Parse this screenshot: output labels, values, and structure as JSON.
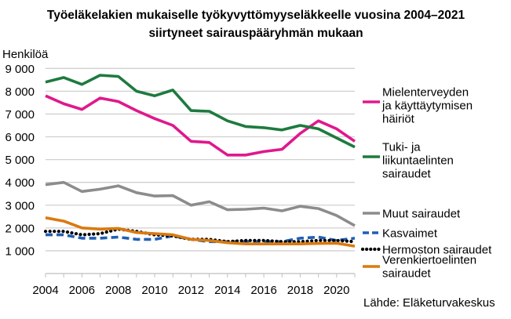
{
  "chart_data": {
    "type": "line",
    "title": [
      "Työeläkelakien mukaiselle työkyvyttömyyseläkkeelle vuosina 2004–2021",
      "siirtyneet sairauspääryhmän mukaan"
    ],
    "ylabel": "Henkilöä",
    "xlabel": "",
    "source": "Lähde: Eläketurvakeskus",
    "ylim": [
      0,
      9000
    ],
    "yticks": [
      1000,
      2000,
      3000,
      4000,
      5000,
      6000,
      7000,
      8000,
      9000
    ],
    "ytick_labels": [
      "1 000",
      "2 000",
      "3 000",
      "4 000",
      "5 000",
      "6 000",
      "7 000",
      "8 000",
      "9 000"
    ],
    "xticks": [
      "2004",
      "2006",
      "2008",
      "2010",
      "2012",
      "2014",
      "2016",
      "2018",
      "2020"
    ],
    "x": [
      2004,
      2005,
      2006,
      2007,
      2008,
      2009,
      2010,
      2011,
      2012,
      2013,
      2014,
      2015,
      2016,
      2017,
      2018,
      2019,
      2020,
      2021
    ],
    "grid": true,
    "legend_placement": "right",
    "series": [
      {
        "name": [
          "Mielenterveyden",
          "ja käyttäytymisen",
          "häiriöt"
        ],
        "color": "#e0188c",
        "style": "solid",
        "values": [
          7800,
          7450,
          7200,
          7700,
          7550,
          7150,
          6800,
          6500,
          5800,
          5750,
          5200,
          5200,
          5350,
          5450,
          6150,
          6700,
          6350,
          5800
        ]
      },
      {
        "name": [
          "Tuki- ja",
          "liikuntaelinten",
          "sairaudet"
        ],
        "color": "#1e7a3e",
        "style": "solid",
        "values": [
          8400,
          8600,
          8300,
          8700,
          8650,
          8000,
          7800,
          8050,
          7150,
          7120,
          6700,
          6450,
          6400,
          6300,
          6500,
          6350,
          5950,
          5550
        ]
      },
      {
        "name": [
          "Muut sairaudet"
        ],
        "color": "#8c8c8c",
        "style": "solid",
        "values": [
          3900,
          4000,
          3600,
          3700,
          3850,
          3550,
          3400,
          3420,
          3000,
          3150,
          2800,
          2820,
          2870,
          2750,
          2950,
          2850,
          2550,
          2100
        ]
      },
      {
        "name": [
          "Kasvaimet"
        ],
        "color": "#1f5fb4",
        "style": "dashed",
        "values": [
          1700,
          1700,
          1550,
          1550,
          1600,
          1500,
          1500,
          1650,
          1500,
          1400,
          1400,
          1400,
          1400,
          1400,
          1550,
          1600,
          1450,
          1550
        ]
      },
      {
        "name": [
          "Hermoston sairaudet"
        ],
        "color": "#000000",
        "style": "dotted",
        "values": [
          1850,
          1850,
          1700,
          1750,
          1950,
          1850,
          1700,
          1650,
          1500,
          1500,
          1400,
          1450,
          1450,
          1400,
          1400,
          1450,
          1450,
          1400
        ]
      },
      {
        "name": [
          "Verenkiertoelinten",
          "sairaudet"
        ],
        "color": "#d97a10",
        "style": "solid",
        "values": [
          2450,
          2300,
          2000,
          1950,
          1980,
          1800,
          1750,
          1700,
          1500,
          1450,
          1350,
          1300,
          1300,
          1300,
          1300,
          1320,
          1330,
          1200
        ]
      }
    ]
  }
}
